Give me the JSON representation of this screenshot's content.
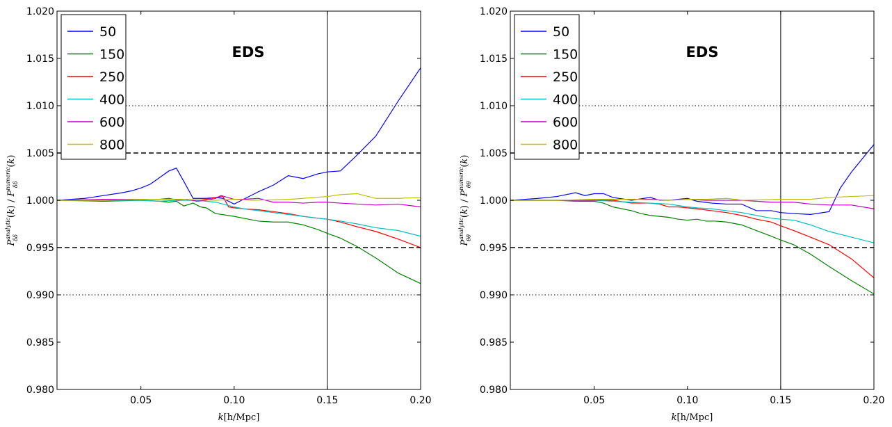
{
  "colors": {
    "50": "#0000ff",
    "150": "#008000",
    "250": "#ff0000",
    "400": "#00bfbf",
    "600": "#bf00bf",
    "800": "#bfbf00"
  },
  "chart_data": [
    {
      "type": "line",
      "annotation": "EDS",
      "xlabel": "k [h/Mpc]",
      "ylabel": "P_δδ^analytic(k) / P_δδ^numeric(k)",
      "xlim": [
        0.005,
        0.2
      ],
      "ylim": [
        0.98,
        1.02
      ],
      "xticks": [
        0.05,
        0.1,
        0.15,
        0.2
      ],
      "xtick_labels": [
        "0.05",
        "0.10",
        "0.15",
        "0.20"
      ],
      "yticks": [
        0.98,
        0.985,
        0.99,
        0.995,
        1.0,
        1.005,
        1.01,
        1.015,
        1.02
      ],
      "ytick_labels": [
        "0.980",
        "0.985",
        "0.990",
        "0.995",
        "1.000",
        "1.005",
        "1.010",
        "1.015",
        "1.020"
      ],
      "hlines_dashed": [
        0.995,
        1.005
      ],
      "hlines_dotted": [
        0.99,
        1.01
      ],
      "vline": 0.15,
      "legend_position": "top-left",
      "series": [
        {
          "name": "50",
          "x": [
            0.005,
            0.02,
            0.03,
            0.04,
            0.045,
            0.05,
            0.055,
            0.06,
            0.065,
            0.069,
            0.073,
            0.078,
            0.085,
            0.09,
            0.094,
            0.1,
            0.105,
            0.113,
            0.121,
            0.129,
            0.137,
            0.145,
            0.15,
            0.157,
            0.166,
            0.176,
            0.188,
            0.2
          ],
          "y": [
            1.0,
            1.0002,
            1.0005,
            1.0008,
            1.001,
            1.0013,
            1.0017,
            1.0024,
            1.0031,
            1.0034,
            1.002,
            1.0002,
            1.0002,
            1.0003,
            1.0002,
            0.9996,
            1.0001,
            1.0009,
            1.0016,
            1.0026,
            1.0023,
            1.0028,
            1.003,
            1.0031,
            1.0048,
            1.0068,
            1.0105,
            1.014
          ]
        },
        {
          "name": "150",
          "x": [
            0.005,
            0.03,
            0.05,
            0.06,
            0.065,
            0.069,
            0.073,
            0.078,
            0.082,
            0.085,
            0.09,
            0.1,
            0.105,
            0.113,
            0.121,
            0.129,
            0.137,
            0.145,
            0.15,
            0.157,
            0.166,
            0.176,
            0.188,
            0.2
          ],
          "y": [
            1.0,
            0.9999,
            1.0,
            0.9999,
            0.9998,
            0.9999,
            0.9994,
            0.9997,
            0.9993,
            0.9992,
            0.9986,
            0.9983,
            0.9981,
            0.9978,
            0.9977,
            0.9977,
            0.9974,
            0.9969,
            0.9965,
            0.996,
            0.9951,
            0.9939,
            0.9923,
            0.9912
          ]
        },
        {
          "name": "250",
          "x": [
            0.005,
            0.03,
            0.05,
            0.06,
            0.065,
            0.07,
            0.075,
            0.08,
            0.085,
            0.09,
            0.094,
            0.097,
            0.1,
            0.105,
            0.113,
            0.121,
            0.129,
            0.137,
            0.145,
            0.15,
            0.157,
            0.166,
            0.176,
            0.188,
            0.2
          ],
          "y": [
            1.0,
            1.0,
            1.0001,
            1.0001,
            1.0001,
            1.0001,
            1.0,
            1.0,
            1.0001,
            1.0003,
            1.0004,
            0.9993,
            0.9992,
            0.9991,
            0.999,
            0.9988,
            0.9986,
            0.9983,
            0.9981,
            0.998,
            0.9977,
            0.9972,
            0.9967,
            0.9959,
            0.995
          ]
        },
        {
          "name": "400",
          "x": [
            0.005,
            0.03,
            0.05,
            0.06,
            0.07,
            0.08,
            0.09,
            0.1,
            0.105,
            0.113,
            0.121,
            0.129,
            0.137,
            0.145,
            0.15,
            0.157,
            0.166,
            0.176,
            0.188,
            0.2
          ],
          "y": [
            1.0,
            1.0,
            1.0,
            0.9999,
            1.0,
            1.0,
            0.9998,
            0.9993,
            0.9991,
            0.9989,
            0.9987,
            0.9985,
            0.9983,
            0.9981,
            0.998,
            0.9978,
            0.9975,
            0.9971,
            0.9968,
            0.9962
          ]
        },
        {
          "name": "600",
          "x": [
            0.005,
            0.03,
            0.05,
            0.06,
            0.065,
            0.07,
            0.075,
            0.08,
            0.085,
            0.09,
            0.093,
            0.1,
            0.105,
            0.113,
            0.121,
            0.129,
            0.137,
            0.145,
            0.15,
            0.157,
            0.166,
            0.176,
            0.188,
            0.2
          ],
          "y": [
            1.0,
            1.0001,
            1.0001,
            1.0001,
            1.0002,
            1.0,
            1.0001,
            0.9999,
            1.0,
            1.0002,
            1.0005,
            1.0001,
            1.0001,
            1.0002,
            0.9998,
            0.9998,
            0.9997,
            0.9998,
            0.9998,
            0.9997,
            0.9996,
            0.9995,
            0.9996,
            0.9993
          ]
        },
        {
          "name": "800",
          "x": [
            0.005,
            0.03,
            0.05,
            0.07,
            0.09,
            0.1,
            0.11,
            0.13,
            0.15,
            0.157,
            0.166,
            0.176,
            0.188,
            0.2
          ],
          "y": [
            1.0,
            1.0,
            1.0001,
            1.0001,
            1.0,
            1.0001,
            1.0,
            1.0001,
            1.0004,
            1.0006,
            1.0007,
            1.0002,
            1.0002,
            1.0003
          ]
        }
      ]
    },
    {
      "type": "line",
      "annotation": "EDS",
      "xlabel": "k [h/Mpc]",
      "ylabel": "P_θθ^analytic(k) / P_θθ^numeric(k)",
      "xlim": [
        0.005,
        0.2
      ],
      "ylim": [
        0.98,
        1.02
      ],
      "xticks": [
        0.05,
        0.1,
        0.15,
        0.2
      ],
      "xtick_labels": [
        "0.05",
        "0.10",
        "0.15",
        "0.20"
      ],
      "yticks": [
        0.98,
        0.985,
        0.99,
        0.995,
        1.0,
        1.005,
        1.01,
        1.015,
        1.02
      ],
      "ytick_labels": [
        "0.980",
        "0.985",
        "0.990",
        "0.995",
        "1.000",
        "1.005",
        "1.010",
        "1.015",
        "1.020"
      ],
      "hlines_dashed": [
        0.995,
        1.005
      ],
      "hlines_dotted": [
        0.99,
        1.01
      ],
      "vline": 0.15,
      "legend_position": "top-left",
      "series": [
        {
          "name": "50",
          "x": [
            0.005,
            0.02,
            0.03,
            0.035,
            0.04,
            0.045,
            0.05,
            0.055,
            0.06,
            0.07,
            0.08,
            0.085,
            0.09,
            0.1,
            0.105,
            0.113,
            0.121,
            0.129,
            0.137,
            0.145,
            0.15,
            0.157,
            0.166,
            0.176,
            0.182,
            0.188,
            0.2
          ],
          "y": [
            1.0,
            1.0002,
            1.0004,
            1.0006,
            1.0008,
            1.0005,
            1.0007,
            1.0007,
            1.0003,
            1.0,
            1.0003,
            1.0,
            1.0,
            1.0002,
            0.9999,
            0.9997,
            0.9996,
            0.9996,
            0.9989,
            0.9989,
            0.9987,
            0.9986,
            0.9985,
            0.9988,
            1.0013,
            1.003,
            1.0059
          ]
        },
        {
          "name": "150",
          "x": [
            0.005,
            0.03,
            0.04,
            0.05,
            0.055,
            0.06,
            0.065,
            0.07,
            0.075,
            0.08,
            0.085,
            0.09,
            0.095,
            0.1,
            0.105,
            0.11,
            0.115,
            0.121,
            0.129,
            0.137,
            0.145,
            0.15,
            0.157,
            0.166,
            0.176,
            0.188,
            0.2
          ],
          "y": [
            1.0,
            1.0,
            0.9999,
            0.9999,
            0.9997,
            0.9993,
            0.9991,
            0.9989,
            0.9986,
            0.9984,
            0.9983,
            0.9982,
            0.998,
            0.9979,
            0.998,
            0.9978,
            0.9978,
            0.9977,
            0.9974,
            0.9968,
            0.9962,
            0.9958,
            0.9953,
            0.9943,
            0.993,
            0.9915,
            0.9901
          ]
        },
        {
          "name": "250",
          "x": [
            0.005,
            0.03,
            0.05,
            0.06,
            0.07,
            0.08,
            0.085,
            0.09,
            0.095,
            0.1,
            0.105,
            0.113,
            0.121,
            0.129,
            0.137,
            0.145,
            0.15,
            0.157,
            0.166,
            0.176,
            0.188,
            0.2
          ],
          "y": [
            1.0,
            1.0,
            1.0,
            1.0,
            0.9997,
            0.9997,
            0.9996,
            0.9993,
            0.9993,
            0.9992,
            0.9991,
            0.9989,
            0.9987,
            0.9984,
            0.998,
            0.9977,
            0.9973,
            0.9968,
            0.9961,
            0.9953,
            0.9938,
            0.9918
          ]
        },
        {
          "name": "400",
          "x": [
            0.005,
            0.03,
            0.05,
            0.06,
            0.07,
            0.08,
            0.09,
            0.1,
            0.105,
            0.113,
            0.121,
            0.129,
            0.137,
            0.145,
            0.15,
            0.157,
            0.166,
            0.176,
            0.188,
            0.2
          ],
          "y": [
            1.0,
            1.0,
            1.0,
            0.9999,
            0.9998,
            0.9997,
            0.9996,
            0.9993,
            0.9992,
            0.9991,
            0.9989,
            0.9987,
            0.9984,
            0.9981,
            0.998,
            0.9979,
            0.9974,
            0.9967,
            0.9961,
            0.9955
          ]
        },
        {
          "name": "600",
          "x": [
            0.005,
            0.03,
            0.05,
            0.06,
            0.07,
            0.08,
            0.09,
            0.1,
            0.11,
            0.121,
            0.129,
            0.137,
            0.145,
            0.15,
            0.157,
            0.166,
            0.176,
            0.188,
            0.2
          ],
          "y": [
            1.0,
            1.0,
            1.0,
            1.0001,
            1.0001,
            1.0001,
            1.0,
            1.0001,
            1.0,
            1.0,
            1.0,
            0.9999,
            0.9998,
            0.9998,
            0.9998,
            0.9996,
            0.9995,
            0.9995,
            0.9991
          ]
        },
        {
          "name": "800",
          "x": [
            0.005,
            0.03,
            0.05,
            0.07,
            0.09,
            0.1,
            0.11,
            0.121,
            0.13,
            0.15,
            0.166,
            0.176,
            0.188,
            0.2
          ],
          "y": [
            1.0,
            1.0,
            1.0001,
            1.0001,
            1.0,
            1.0001,
            1.0001,
            1.0002,
            1.0,
            1.0001,
            1.0001,
            1.0003,
            1.0004,
            1.0005
          ]
        }
      ]
    }
  ]
}
